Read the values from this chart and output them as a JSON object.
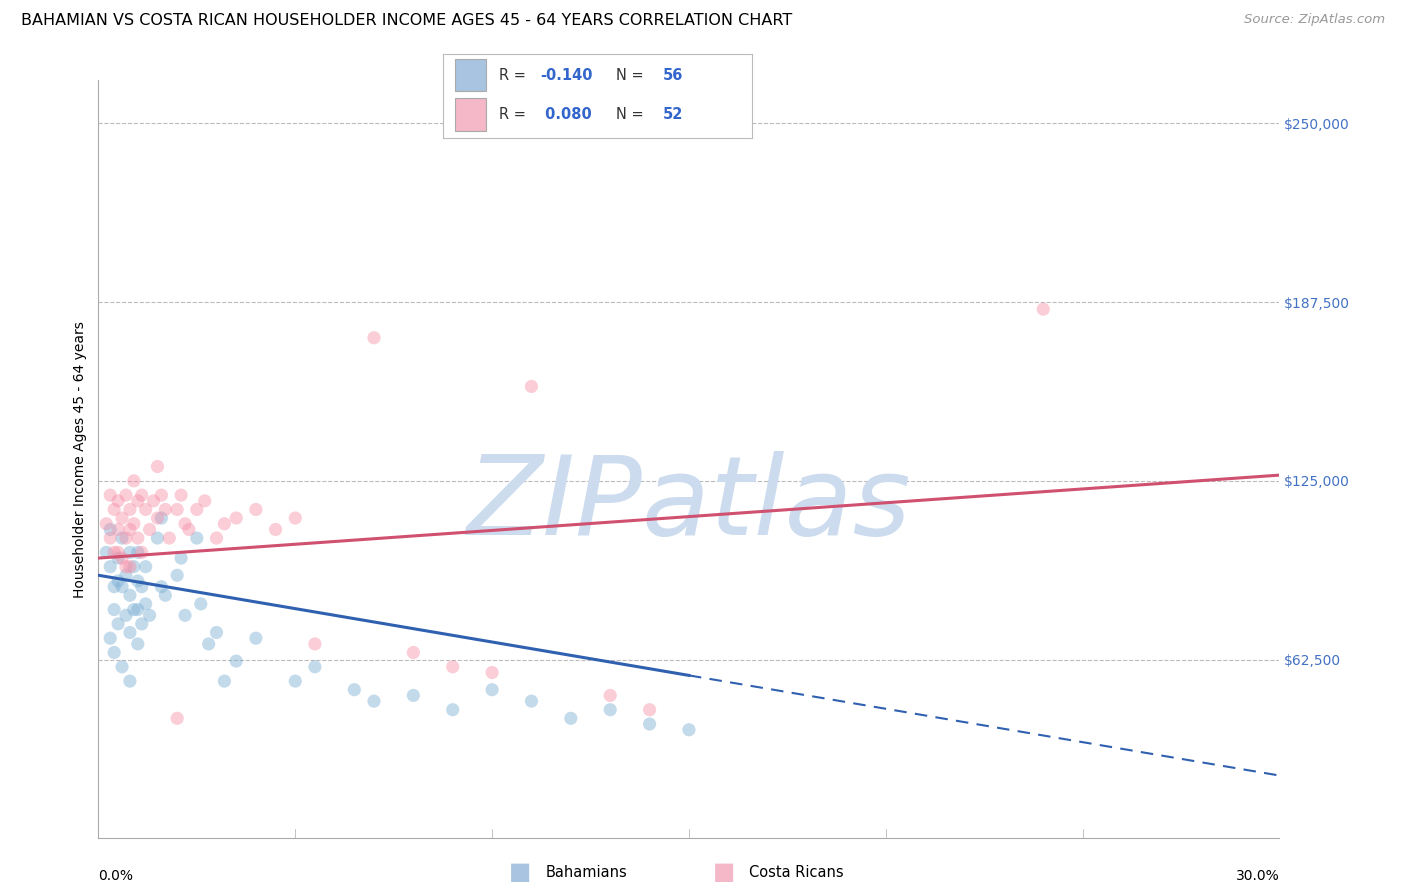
{
  "title": "BAHAMIAN VS COSTA RICAN HOUSEHOLDER INCOME AGES 45 - 64 YEARS CORRELATION CHART",
  "source": "Source: ZipAtlas.com",
  "ylabel": "Householder Income Ages 45 - 64 years",
  "yticks": [
    0,
    62500,
    125000,
    187500,
    250000
  ],
  "ytick_labels": [
    "",
    "$62,500",
    "$125,000",
    "$187,500",
    "$250,000"
  ],
  "xmin": 0.0,
  "xmax": 30.0,
  "ymin": 0,
  "ymax": 265000,
  "legend_color1": "#a8c4e0",
  "legend_color2": "#f4b8c8",
  "watermark_text": "ZIPatlas",
  "watermark_color": "#ccdcee",
  "title_fontsize": 11.5,
  "axis_label_fontsize": 10,
  "tick_label_fontsize": 10,
  "source_fontsize": 9.5,
  "blue_dot_color": "#7bafd4",
  "pink_dot_color": "#f490a8",
  "blue_line_color": "#3060b0",
  "pink_line_color": "#d05070",
  "dot_size": 90,
  "dot_alpha": 0.45,
  "grid_color": "#bbbbbb",
  "background_color": "#ffffff",
  "blue_line_x0": 0.0,
  "blue_line_y0": 92000,
  "blue_line_x1": 30.0,
  "blue_line_y1": 22000,
  "blue_solid_end": 15.0,
  "pink_line_x0": 0.0,
  "pink_line_y0": 98000,
  "pink_line_x1": 30.0,
  "pink_line_y1": 127000,
  "bahamian_x": [
    0.2,
    0.3,
    0.3,
    0.4,
    0.4,
    0.5,
    0.5,
    0.5,
    0.6,
    0.6,
    0.7,
    0.7,
    0.8,
    0.8,
    0.8,
    0.9,
    0.9,
    1.0,
    1.0,
    1.0,
    1.0,
    1.1,
    1.1,
    1.2,
    1.2,
    1.3,
    1.5,
    1.6,
    1.6,
    1.7,
    2.0,
    2.1,
    2.2,
    2.5,
    2.6,
    2.8,
    3.0,
    3.2,
    3.5,
    4.0,
    5.0,
    5.5,
    6.5,
    7.0,
    8.0,
    9.0,
    10.0,
    11.0,
    12.0,
    13.0,
    14.0,
    15.0,
    0.3,
    0.4,
    0.6,
    0.8
  ],
  "bahamian_y": [
    100000,
    108000,
    95000,
    88000,
    80000,
    98000,
    90000,
    75000,
    105000,
    88000,
    92000,
    78000,
    100000,
    85000,
    72000,
    95000,
    80000,
    100000,
    90000,
    80000,
    68000,
    88000,
    75000,
    95000,
    82000,
    78000,
    105000,
    112000,
    88000,
    85000,
    92000,
    98000,
    78000,
    105000,
    82000,
    68000,
    72000,
    55000,
    62000,
    70000,
    55000,
    60000,
    52000,
    48000,
    50000,
    45000,
    52000,
    48000,
    42000,
    45000,
    40000,
    38000,
    70000,
    65000,
    60000,
    55000
  ],
  "costarican_x": [
    0.2,
    0.3,
    0.3,
    0.4,
    0.4,
    0.5,
    0.5,
    0.6,
    0.6,
    0.7,
    0.7,
    0.8,
    0.8,
    0.8,
    0.9,
    0.9,
    1.0,
    1.0,
    1.1,
    1.1,
    1.2,
    1.3,
    1.4,
    1.5,
    1.5,
    1.6,
    1.7,
    1.8,
    2.0,
    2.1,
    2.2,
    2.3,
    2.5,
    2.7,
    3.0,
    3.2,
    3.5,
    4.0,
    4.5,
    5.0,
    5.5,
    7.0,
    8.0,
    9.0,
    10.0,
    11.0,
    13.0,
    14.0,
    24.0,
    0.5,
    0.7,
    2.0
  ],
  "costarican_y": [
    110000,
    120000,
    105000,
    115000,
    100000,
    108000,
    118000,
    112000,
    98000,
    120000,
    105000,
    115000,
    108000,
    95000,
    125000,
    110000,
    118000,
    105000,
    120000,
    100000,
    115000,
    108000,
    118000,
    130000,
    112000,
    120000,
    115000,
    105000,
    115000,
    120000,
    110000,
    108000,
    115000,
    118000,
    105000,
    110000,
    112000,
    115000,
    108000,
    112000,
    68000,
    175000,
    65000,
    60000,
    58000,
    158000,
    50000,
    45000,
    185000,
    100000,
    95000,
    42000
  ]
}
